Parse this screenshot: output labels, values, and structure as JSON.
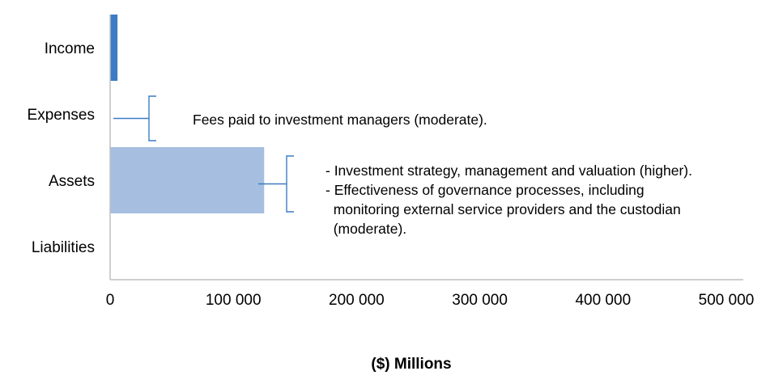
{
  "chart_data": {
    "type": "bar",
    "orientation": "horizontal",
    "categories": [
      "Income",
      "Expenses",
      "Assets",
      "Liabilities"
    ],
    "values": [
      6000,
      0,
      125000,
      0
    ],
    "xlabel": "($) Millions",
    "xlim": [
      0,
      500000
    ],
    "xticks": [
      "0",
      "100 000",
      "200 000",
      "300 000",
      "400 000",
      "500 000"
    ],
    "grid": false,
    "bar_colors": [
      "#3d7cc4",
      "#a6bfe0",
      "#a6bfe0",
      "#a6bfe0"
    ],
    "annotations": [
      {
        "category": "Expenses",
        "lines": [
          "Fees paid to investment managers (moderate)."
        ]
      },
      {
        "category": "Assets",
        "lines": [
          "- Investment strategy, management and valuation (higher).",
          "- Effectiveness of governance processes, including",
          "  monitoring external service providers and the custodian",
          "  (moderate)."
        ]
      }
    ]
  },
  "colors": {
    "axis": "#bfbfbf",
    "bracket": "#3d7cc4"
  }
}
